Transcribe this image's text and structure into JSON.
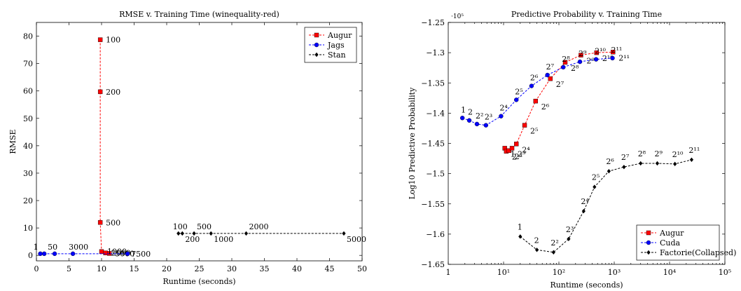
{
  "chart_data": [
    {
      "type": "line",
      "title": "RMSE v. Training Time (winequality-red)",
      "xlabel": "Runtime (seconds)",
      "ylabel": "RMSE",
      "xlim": [
        0,
        50
      ],
      "ylim": [
        -2,
        85
      ],
      "xticks": [
        0,
        5,
        10,
        15,
        20,
        25,
        30,
        35,
        40,
        45,
        50
      ],
      "yticks": [
        0,
        10,
        20,
        30,
        40,
        50,
        60,
        70,
        80
      ],
      "grid": false,
      "legend_position": "top-right",
      "series": [
        {
          "name": "Augur",
          "color": "#ff0000",
          "marker": "square",
          "points": [
            {
              "x": 9.8,
              "y": 78.7,
              "label": "100"
            },
            {
              "x": 9.8,
              "y": 59.7,
              "label": "200"
            },
            {
              "x": 9.8,
              "y": 12.0,
              "label": "500"
            },
            {
              "x": 10.0,
              "y": 1.4,
              "label": "1000"
            },
            {
              "x": 10.6,
              "y": 0.9,
              "label": "2000"
            },
            {
              "x": 11.2,
              "y": 0.7,
              "label": "5000"
            }
          ]
        },
        {
          "name": "Jags",
          "color": "#0000ff",
          "marker": "circle",
          "points": [
            {
              "x": 0.6,
              "y": 0.6,
              "label": "1"
            },
            {
              "x": 1.2,
              "y": 0.6,
              "label": "50"
            },
            {
              "x": 2.8,
              "y": 0.6,
              "label": ""
            },
            {
              "x": 5.6,
              "y": 0.6,
              "label": "3000"
            },
            {
              "x": 14.0,
              "y": 0.6,
              "label": "7500"
            }
          ]
        },
        {
          "name": "Stan",
          "color": "#000000",
          "marker": "diamond",
          "points": [
            {
              "x": 21.8,
              "y": 8.0,
              "label": "100"
            },
            {
              "x": 22.4,
              "y": 8.0,
              "label": "200"
            },
            {
              "x": 24.2,
              "y": 8.0,
              "label": "500"
            },
            {
              "x": 26.8,
              "y": 8.0,
              "label": "1000"
            },
            {
              "x": 32.2,
              "y": 8.0,
              "label": "2000"
            },
            {
              "x": 47.2,
              "y": 8.0,
              "label": "5000"
            }
          ]
        }
      ]
    },
    {
      "type": "line",
      "title": "Predictive Probability v. Training Time",
      "xlabel": "Runtime (seconds)",
      "ylabel": "Log10 Predictive Probability",
      "x_scale": "log",
      "xlim": [
        1,
        100000
      ],
      "ylim": [
        -165000,
        -125000
      ],
      "y_multiplier": "·10⁵",
      "xticks": [
        {
          "value": 1,
          "label": "1"
        },
        {
          "value": 10,
          "label": "10¹"
        },
        {
          "value": 100,
          "label": "10²"
        },
        {
          "value": 1000,
          "label": "10³"
        },
        {
          "value": 10000,
          "label": "10⁴"
        },
        {
          "value": 100000,
          "label": "10⁵"
        }
      ],
      "yticks": [
        {
          "value": -125000,
          "label": "−1.25"
        },
        {
          "value": -130000,
          "label": "−1.3"
        },
        {
          "value": -135000,
          "label": "−1.35"
        },
        {
          "value": -140000,
          "label": "−1.4"
        },
        {
          "value": -145000,
          "label": "−1.45"
        },
        {
          "value": -150000,
          "label": "−1.5"
        },
        {
          "value": -155000,
          "label": "−1.55"
        },
        {
          "value": -160000,
          "label": "−1.6"
        },
        {
          "value": -165000,
          "label": "−1.65"
        }
      ],
      "grid": false,
      "legend_position": "bottom-right",
      "series": [
        {
          "name": "Augur",
          "color": "#ff0000",
          "marker": "square",
          "points": [
            {
              "x": 10.5,
              "y": -145800,
              "label": "1"
            },
            {
              "x": 11.2,
              "y": -146300,
              "label": "2"
            },
            {
              "x": 12.5,
              "y": -146200,
              "label": "2²"
            },
            {
              "x": 14.2,
              "y": -145800,
              "label": "2³"
            },
            {
              "x": 17.0,
              "y": -145100,
              "label": "2⁴"
            },
            {
              "x": 24.0,
              "y": -142000,
              "label": "2⁵"
            },
            {
              "x": 38.0,
              "y": -138000,
              "label": "2⁶"
            },
            {
              "x": 70.0,
              "y": -134300,
              "label": "2⁷"
            },
            {
              "x": 130.0,
              "y": -131600,
              "label": "2⁸"
            },
            {
              "x": 250.0,
              "y": -130400,
              "label": "2⁹"
            },
            {
              "x": 480.0,
              "y": -130000,
              "label": "2¹⁰"
            },
            {
              "x": 950.0,
              "y": -129900,
              "label": "2¹¹"
            }
          ]
        },
        {
          "name": "Cuda",
          "color": "#0000ff",
          "marker": "circle",
          "points": [
            {
              "x": 1.8,
              "y": -140800,
              "label": "1"
            },
            {
              "x": 2.4,
              "y": -141200,
              "label": "2"
            },
            {
              "x": 3.3,
              "y": -141800,
              "label": "2²"
            },
            {
              "x": 4.8,
              "y": -142000,
              "label": "2³"
            },
            {
              "x": 9.0,
              "y": -140500,
              "label": "2⁴"
            },
            {
              "x": 17.0,
              "y": -137800,
              "label": "2⁵"
            },
            {
              "x": 32.0,
              "y": -135500,
              "label": "2⁶"
            },
            {
              "x": 62.0,
              "y": -133700,
              "label": "2⁷"
            },
            {
              "x": 120.0,
              "y": -132400,
              "label": "2⁸"
            },
            {
              "x": 240.0,
              "y": -131500,
              "label": "2⁹"
            },
            {
              "x": 470.0,
              "y": -131100,
              "label": "2¹⁰"
            },
            {
              "x": 930.0,
              "y": -130900,
              "label": "2¹¹"
            }
          ]
        },
        {
          "name": "Factorie(Collapsed)",
          "color": "#000000",
          "marker": "diamond",
          "points": [
            {
              "x": 20.0,
              "y": -160400,
              "label": "1"
            },
            {
              "x": 40.0,
              "y": -162600,
              "label": "2"
            },
            {
              "x": 80.0,
              "y": -163000,
              "label": "2²"
            },
            {
              "x": 150.0,
              "y": -160800,
              "label": "2³"
            },
            {
              "x": 280.0,
              "y": -156200,
              "label": "2⁴"
            },
            {
              "x": 440.0,
              "y": -152200,
              "label": "2⁵"
            },
            {
              "x": 800.0,
              "y": -149600,
              "label": "2⁶"
            },
            {
              "x": 1500.0,
              "y": -148900,
              "label": "2⁷"
            },
            {
              "x": 3000.0,
              "y": -148300,
              "label": "2⁸"
            },
            {
              "x": 6000.0,
              "y": -148300,
              "label": "2⁹"
            },
            {
              "x": 12500.0,
              "y": -148400,
              "label": "2¹⁰"
            },
            {
              "x": 25000.0,
              "y": -147700,
              "label": "2¹¹"
            }
          ]
        }
      ]
    }
  ]
}
